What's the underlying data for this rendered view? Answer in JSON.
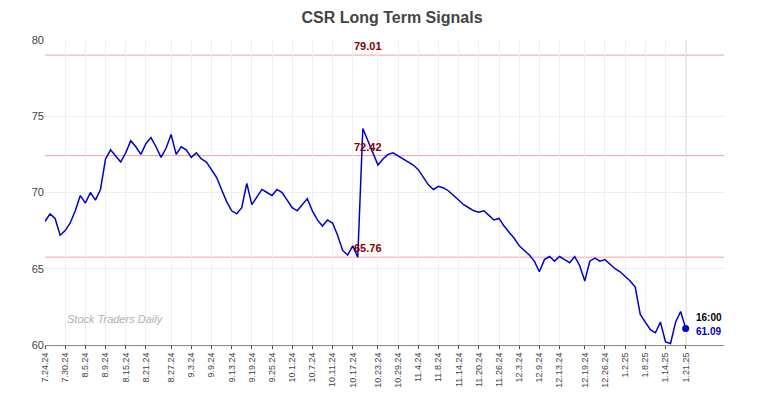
{
  "chart_data": {
    "type": "line",
    "title": "CSR Long Term Signals",
    "categories": [
      "7.24.24",
      null,
      null,
      null,
      "7.30.24",
      null,
      null,
      null,
      "8.5.24",
      null,
      null,
      null,
      "8.9.24",
      null,
      null,
      null,
      "8.15.24",
      null,
      null,
      null,
      "8.21.24",
      null,
      null,
      null,
      null,
      "8.27.24",
      null,
      null,
      null,
      "9.3.24",
      null,
      null,
      null,
      "9.9.24",
      null,
      null,
      null,
      "9.13.24",
      null,
      null,
      null,
      "9.19.24",
      null,
      null,
      null,
      "9.25.24",
      null,
      null,
      null,
      "10.1.24",
      null,
      null,
      null,
      "10.7.24",
      null,
      null,
      null,
      "10.11.24",
      null,
      null,
      null,
      "10.17.24",
      null,
      null,
      null,
      null,
      "10.23.24",
      null,
      null,
      null,
      "10.29.24",
      null,
      null,
      null,
      "11.4.24",
      null,
      null,
      null,
      "11.8.24",
      null,
      null,
      null,
      "11.14.24",
      null,
      null,
      null,
      "11.20.24",
      null,
      null,
      null,
      "11.26.24",
      null,
      null,
      null,
      "12.3.24",
      null,
      null,
      null,
      "12.9.24",
      null,
      null,
      null,
      "12.13.24",
      null,
      null,
      null,
      null,
      "12.19.24",
      null,
      null,
      null,
      "12.26.24",
      null,
      null,
      null,
      "1.2.25",
      null,
      null,
      null,
      "1.8.25",
      null,
      null,
      null,
      "1.14.25",
      null,
      null,
      null,
      "1.21.25"
    ],
    "values": [
      68.1,
      68.6,
      68.3,
      67.2,
      67.5,
      68.0,
      68.8,
      69.8,
      69.3,
      70.0,
      69.5,
      70.2,
      72.2,
      72.8,
      72.4,
      72.0,
      72.6,
      73.4,
      73.0,
      72.5,
      73.2,
      73.6,
      73.0,
      72.3,
      72.9,
      73.8,
      72.5,
      73.0,
      72.8,
      72.3,
      72.6,
      72.2,
      72.0,
      71.5,
      71.0,
      70.2,
      69.4,
      68.8,
      68.6,
      69.0,
      70.6,
      69.2,
      69.7,
      70.2,
      70.0,
      69.8,
      70.2,
      70.0,
      69.5,
      69.0,
      68.8,
      69.2,
      69.6,
      68.8,
      68.2,
      67.8,
      68.2,
      68.0,
      67.2,
      66.2,
      65.9,
      66.5,
      65.76,
      74.2,
      73.4,
      72.5,
      71.8,
      72.2,
      72.5,
      72.6,
      72.4,
      72.2,
      72.0,
      71.8,
      71.5,
      71.0,
      70.5,
      70.2,
      70.4,
      70.3,
      70.1,
      69.8,
      69.5,
      69.2,
      69.0,
      68.8,
      68.7,
      68.8,
      68.5,
      68.2,
      68.3,
      67.8,
      67.4,
      67.0,
      66.5,
      66.2,
      65.9,
      65.5,
      64.8,
      65.6,
      65.8,
      65.5,
      65.8,
      65.6,
      65.4,
      65.8,
      65.2,
      64.2,
      65.5,
      65.7,
      65.5,
      65.6,
      65.3,
      65.0,
      64.8,
      64.5,
      64.2,
      63.8,
      62.0,
      61.5,
      61.0,
      60.8,
      61.5,
      60.2,
      60.1,
      61.5,
      62.2,
      61.09
    ],
    "color": "#0000cc",
    "ylim": [
      60,
      80
    ],
    "yticks": [
      60,
      65,
      70,
      75,
      80
    ],
    "grid": true,
    "hlines": [
      {
        "y": 79.01,
        "label": "79.01",
        "color": "#f5a0a0"
      },
      {
        "y": 72.42,
        "label": "72.42",
        "color": "#f5a0a0"
      },
      {
        "y": 65.76,
        "label": "65.76",
        "color": "#f5a0a0"
      }
    ],
    "last_point_labels": [
      "16:00",
      "61.09"
    ],
    "watermark": "Stock Traders Daily"
  }
}
